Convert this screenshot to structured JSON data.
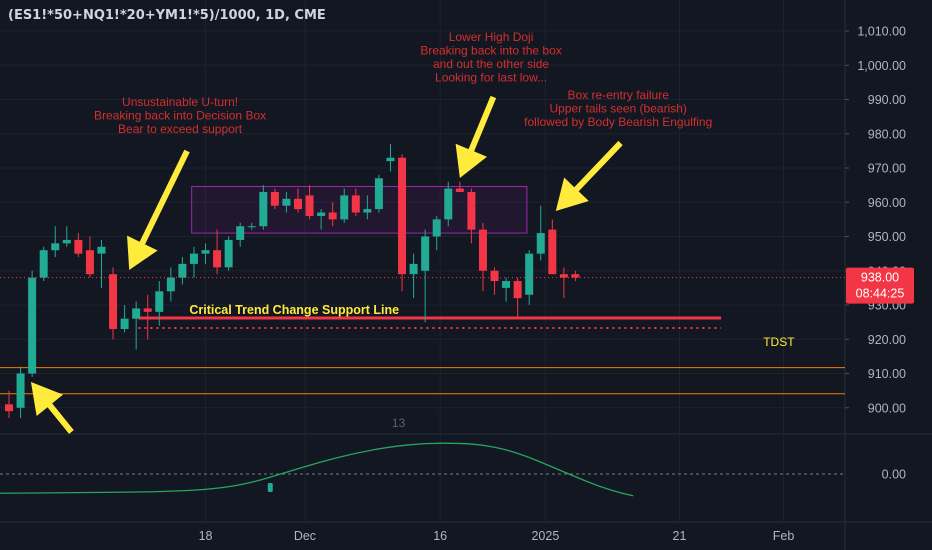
{
  "symbol_title": "(ES1!*50+NQ1!*20+YM1!*5)/1000, 1D, CME",
  "colors": {
    "background": "#131722",
    "up": "#22ab94",
    "down": "#f23645",
    "annotation_red": "#d32f2f",
    "arrow_yellow": "#ffeb3b",
    "box_purple": "#9c27b0",
    "support_red": "#f23645",
    "orange_line": "#f57c00",
    "oscillator": "#26a65b"
  },
  "price_label": {
    "price": "938.00",
    "countdown": "08:44:25"
  },
  "annotations": {
    "u_turn": [
      "Unsustainable U-turn!",
      "Breaking back into Decision Box",
      "Bear to exceed support"
    ],
    "doji": [
      "Lower High Doji",
      "Breaking back into the box",
      "and out the other side",
      "Looking for last low..."
    ],
    "reentry": [
      "Box re-entry failure",
      "Upper tails seen (bearish)",
      "followed by Body Bearish Engulfing"
    ],
    "support_line": "Critical Trend Change Support Line",
    "tdst": "TDST",
    "oscillator_count": "13"
  },
  "chart_data": {
    "type": "candlestick",
    "title": "(ES1!*50+NQ1!*20+YM1!*5)/1000, 1D, CME",
    "y_axis": {
      "ylim": [
        893,
        1017
      ],
      "ticks": [
        900,
        910,
        920,
        930,
        940,
        950,
        960,
        970,
        980,
        990,
        1000,
        1010
      ],
      "tick_labels": [
        "900.00",
        "910.00",
        "920.00",
        "930.00",
        "940.00",
        "950.00",
        "960.00",
        "970.00",
        "980.00",
        "990.00",
        "1,000.00",
        "1,010.00"
      ]
    },
    "x_axis": {
      "tick_labels": [
        "18",
        "Dec",
        "16",
        "2025",
        "21",
        "Feb"
      ],
      "tick_indices": [
        17,
        25.6,
        37.3,
        46.4,
        58,
        67
      ]
    },
    "candles": [
      {
        "o": 901,
        "h": 905,
        "l": 897,
        "c": 899
      },
      {
        "o": 900,
        "h": 912,
        "l": 897,
        "c": 910
      },
      {
        "o": 910,
        "h": 940,
        "l": 909,
        "c": 938
      },
      {
        "o": 938,
        "h": 947,
        "l": 937,
        "c": 946
      },
      {
        "o": 946,
        "h": 953,
        "l": 944,
        "c": 948
      },
      {
        "o": 948,
        "h": 953,
        "l": 947,
        "c": 949
      },
      {
        "o": 949,
        "h": 951,
        "l": 944,
        "c": 945
      },
      {
        "o": 946,
        "h": 950,
        "l": 938,
        "c": 939
      },
      {
        "o": 945,
        "h": 949,
        "l": 935,
        "c": 947
      },
      {
        "o": 939,
        "h": 941,
        "l": 920,
        "c": 923
      },
      {
        "o": 923,
        "h": 930,
        "l": 922,
        "c": 926
      },
      {
        "o": 926,
        "h": 931,
        "l": 917,
        "c": 929
      },
      {
        "o": 929,
        "h": 933,
        "l": 920,
        "c": 928
      },
      {
        "o": 928,
        "h": 937,
        "l": 924,
        "c": 934
      },
      {
        "o": 934,
        "h": 941,
        "l": 931,
        "c": 938
      },
      {
        "o": 938,
        "h": 944,
        "l": 936,
        "c": 942
      },
      {
        "o": 942,
        "h": 947,
        "l": 938,
        "c": 945
      },
      {
        "o": 945,
        "h": 948,
        "l": 942,
        "c": 946
      },
      {
        "o": 946,
        "h": 952,
        "l": 939,
        "c": 941
      },
      {
        "o": 941,
        "h": 950,
        "l": 940,
        "c": 949
      },
      {
        "o": 949,
        "h": 954,
        "l": 947,
        "c": 953
      },
      {
        "o": 953,
        "h": 954,
        "l": 952,
        "c": 953
      },
      {
        "o": 953,
        "h": 965,
        "l": 952,
        "c": 963
      },
      {
        "o": 963,
        "h": 964,
        "l": 958,
        "c": 959
      },
      {
        "o": 959,
        "h": 963,
        "l": 957,
        "c": 961
      },
      {
        "o": 961,
        "h": 964,
        "l": 957,
        "c": 958
      },
      {
        "o": 962,
        "h": 965,
        "l": 955,
        "c": 956
      },
      {
        "o": 956,
        "h": 958,
        "l": 952,
        "c": 957
      },
      {
        "o": 957,
        "h": 960,
        "l": 953,
        "c": 955
      },
      {
        "o": 955,
        "h": 964,
        "l": 954,
        "c": 962
      },
      {
        "o": 962,
        "h": 964,
        "l": 956,
        "c": 957
      },
      {
        "o": 957,
        "h": 962,
        "l": 955,
        "c": 958
      },
      {
        "o": 958,
        "h": 968,
        "l": 957,
        "c": 967
      },
      {
        "o": 972,
        "h": 977,
        "l": 969,
        "c": 973
      },
      {
        "o": 973,
        "h": 974,
        "l": 934,
        "c": 939
      },
      {
        "o": 939,
        "h": 945,
        "l": 932,
        "c": 942
      },
      {
        "o": 940,
        "h": 952,
        "l": 925,
        "c": 950
      },
      {
        "o": 950,
        "h": 956,
        "l": 946,
        "c": 955
      },
      {
        "o": 955,
        "h": 966,
        "l": 953,
        "c": 964
      },
      {
        "o": 964,
        "h": 966,
        "l": 963,
        "c": 963
      },
      {
        "o": 963,
        "h": 964,
        "l": 948,
        "c": 952
      },
      {
        "o": 952,
        "h": 954,
        "l": 934,
        "c": 940
      },
      {
        "o": 940,
        "h": 941,
        "l": 933,
        "c": 937
      },
      {
        "o": 935,
        "h": 938,
        "l": 931,
        "c": 937
      },
      {
        "o": 937,
        "h": 938,
        "l": 926,
        "c": 932
      },
      {
        "o": 933,
        "h": 946,
        "l": 930,
        "c": 945
      },
      {
        "o": 945,
        "h": 959,
        "l": 943,
        "c": 951
      },
      {
        "o": 952,
        "h": 955,
        "l": 939,
        "c": 939
      },
      {
        "o": 939,
        "h": 941,
        "l": 932,
        "c": 938
      },
      {
        "o": 939,
        "h": 940,
        "l": 937,
        "c": 938
      }
    ],
    "candle_x_start": 0,
    "candle_spacing": 1,
    "levels": [
      {
        "name": "critical-support",
        "value": 926.2,
        "style": "solid",
        "color": "#f23645",
        "from_index": 11.2,
        "to_index": 61.6
      },
      {
        "name": "tdst",
        "value": 923.3,
        "style": "dotted",
        "color": "#f23645",
        "from_index": 11.2,
        "to_index": 61.6
      },
      {
        "name": "orange-upper",
        "value": 911.7,
        "style": "solid",
        "color": "#f57c00"
      },
      {
        "name": "orange-lower",
        "value": 904.1,
        "style": "solid",
        "color": "#f57c00"
      }
    ],
    "decision_box": {
      "x0_index": 15.8,
      "x1_index": 44.8,
      "y0": 951.0,
      "y1": 964.6
    },
    "oscillator": {
      "zero_label": "0.00",
      "points": [
        [
          -1,
          -0.55
        ],
        [
          8,
          -0.53
        ],
        [
          14,
          -0.5
        ],
        [
          18,
          -0.42
        ],
        [
          21,
          -0.25
        ],
        [
          24,
          0.05
        ],
        [
          27,
          0.35
        ],
        [
          30,
          0.6
        ],
        [
          33,
          0.78
        ],
        [
          36,
          0.88
        ],
        [
          39,
          0.88
        ],
        [
          41,
          0.83
        ],
        [
          43,
          0.7
        ],
        [
          45,
          0.48
        ],
        [
          47,
          0.2
        ],
        [
          49,
          -0.08
        ],
        [
          51,
          -0.35
        ],
        [
          53,
          -0.55
        ],
        [
          54,
          -0.62
        ]
      ],
      "ylim": [
        -0.75,
        1.0
      ],
      "highlight_index": 22.6
    }
  }
}
